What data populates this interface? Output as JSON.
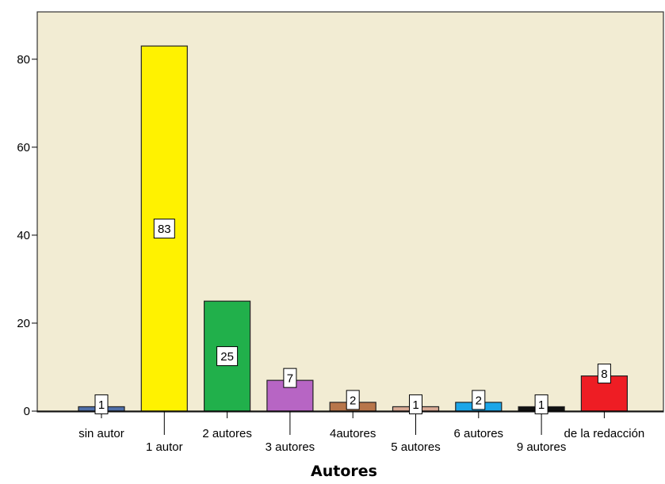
{
  "chart_data": {
    "type": "bar",
    "title": "",
    "xlabel": "Autores",
    "ylabel": "",
    "categories": [
      "sin autor",
      "1 autor",
      "2 autores",
      "3 autores",
      "4autores",
      "5 autores",
      "6 autores",
      "9 autores",
      "de la redacción"
    ],
    "values": [
      1,
      83,
      25,
      7,
      2,
      1,
      2,
      1,
      8
    ],
    "bar_colors": [
      "#4f6fa8",
      "#fff200",
      "#21b04b",
      "#b765c4",
      "#b8764a",
      "#d8a994",
      "#1ca6e8",
      "#111111",
      "#ee1d24"
    ],
    "ylim": [
      0,
      90
    ],
    "yticks": [
      0,
      20,
      40,
      60,
      80
    ],
    "grid": false,
    "legend": "none",
    "background_color": "#f2ecd3",
    "data_labels": true
  }
}
